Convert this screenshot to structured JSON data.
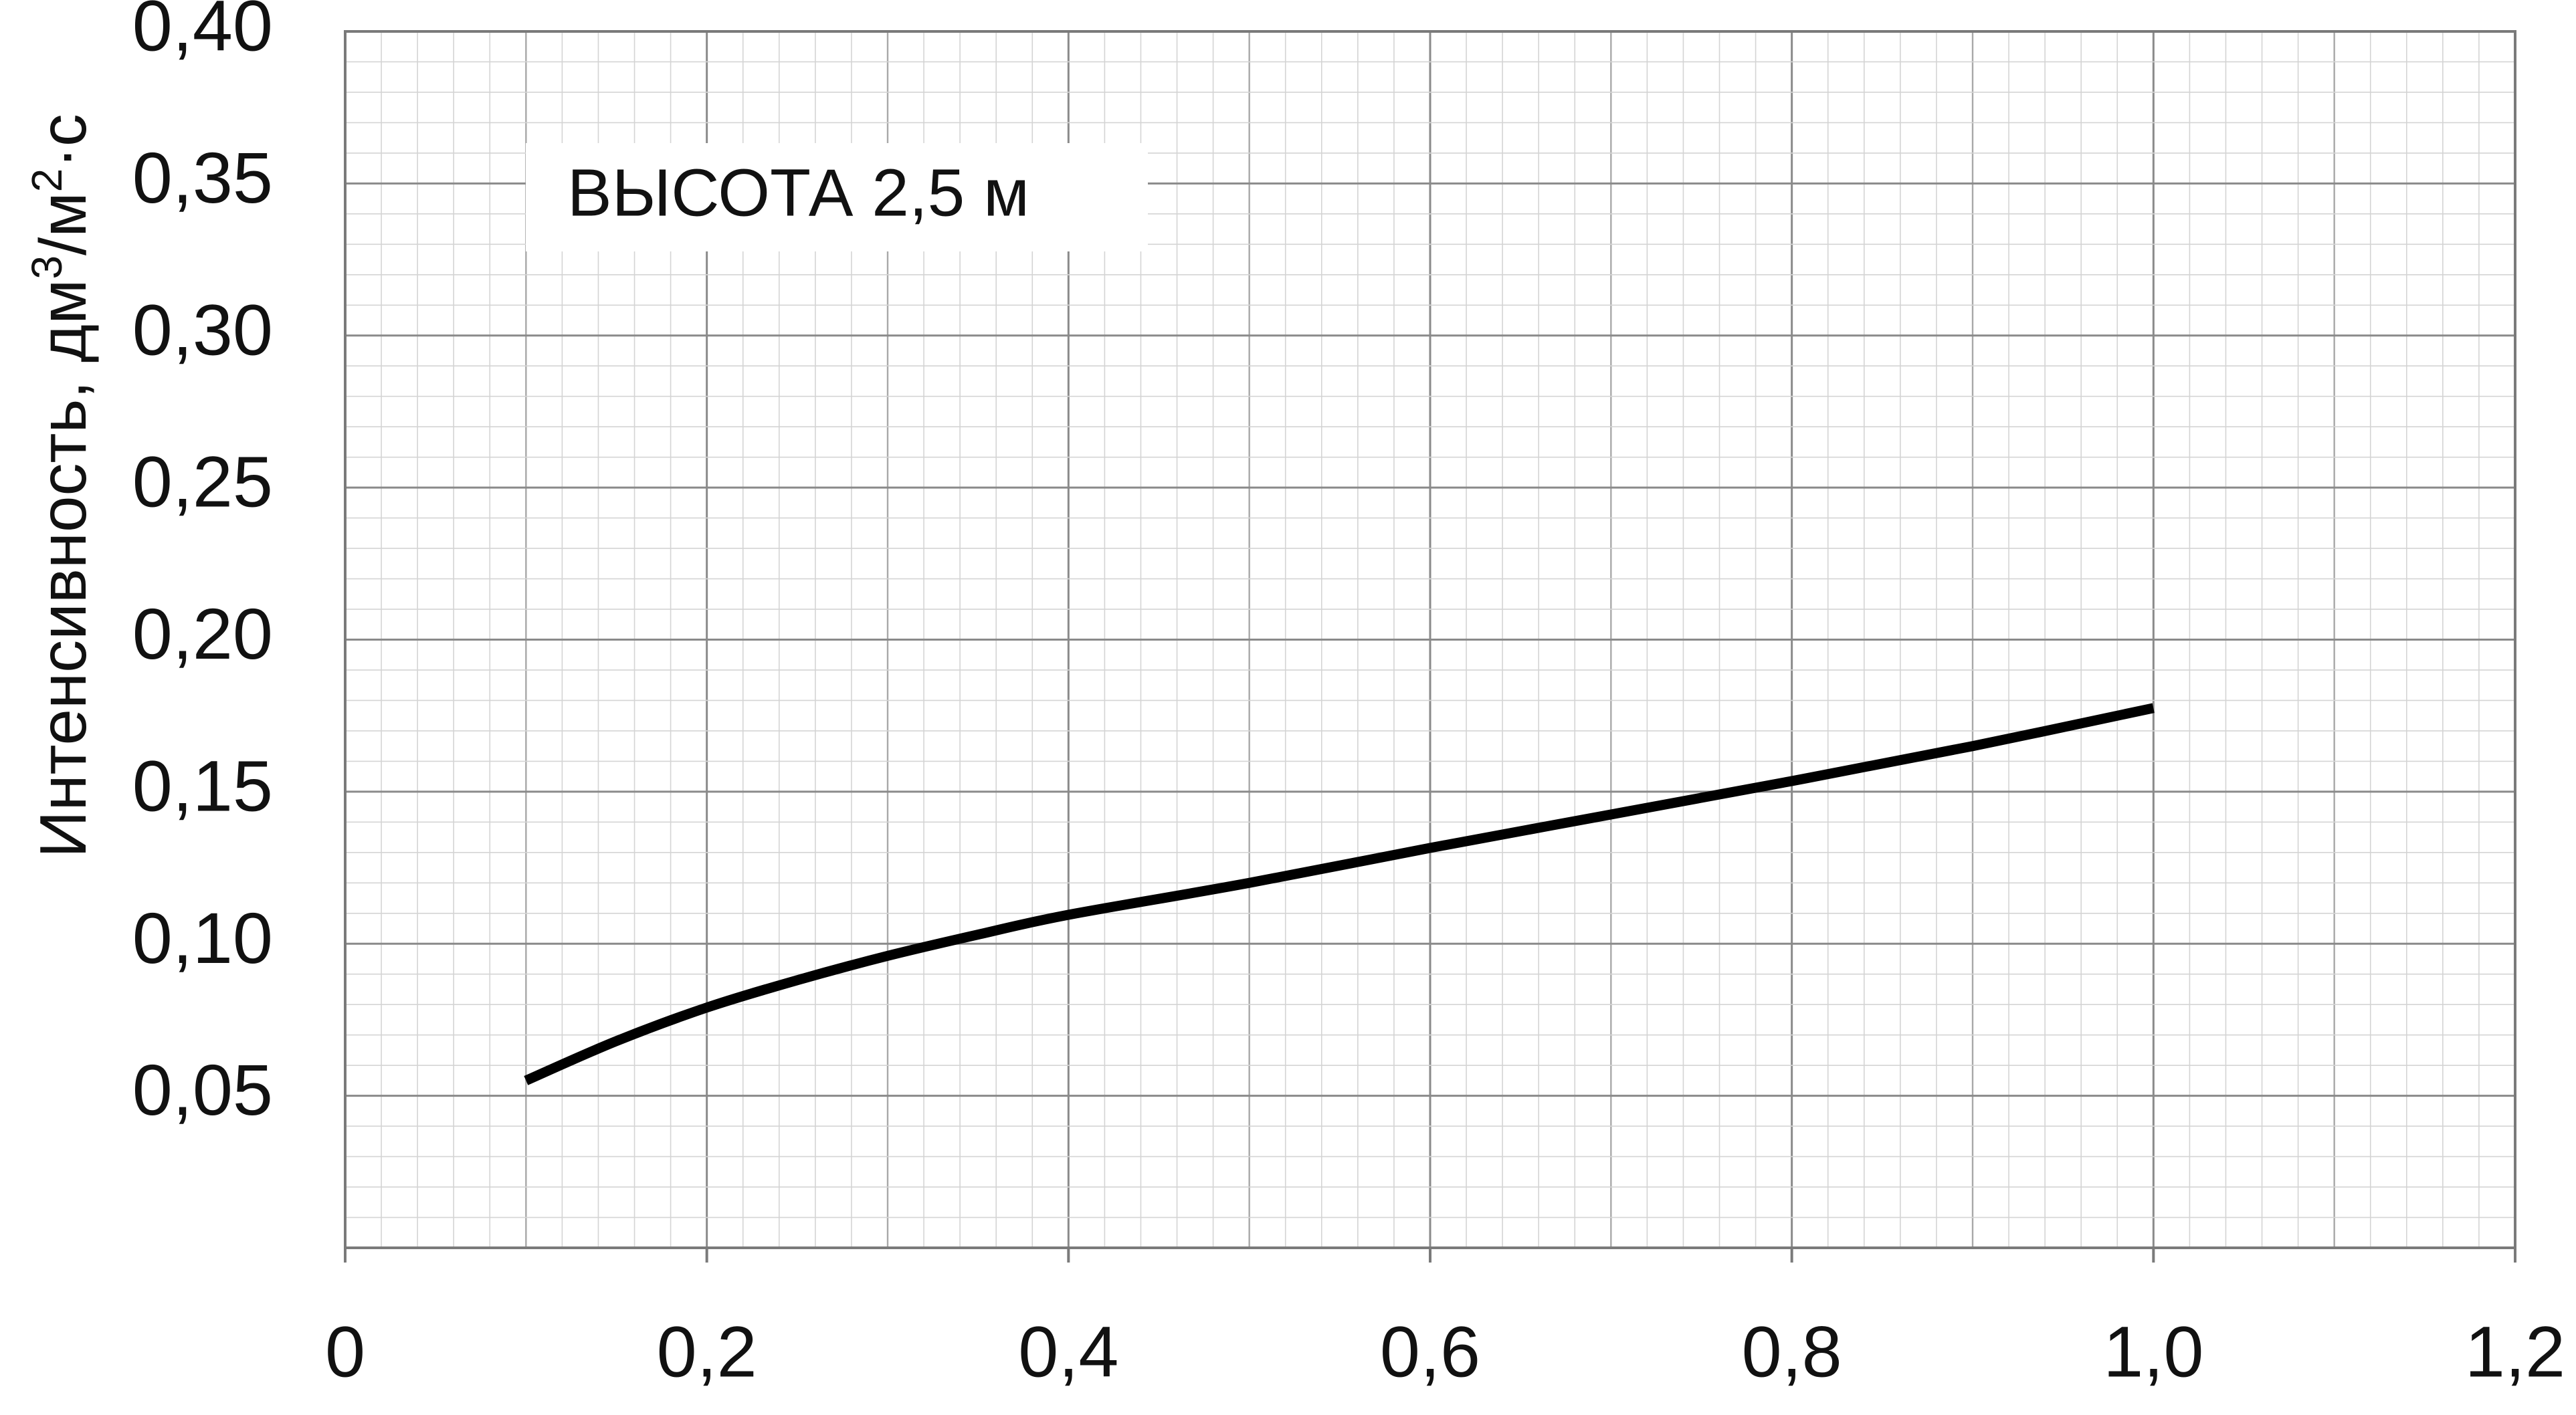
{
  "chart_data": {
    "type": "line",
    "title": "",
    "xlabel": "",
    "ylabel": {
      "main": "Интенсивность, дм",
      "sup1": "3",
      "mid": "/м",
      "sup2": "2",
      "end": "·с"
    },
    "xlim": [
      0,
      1.2
    ],
    "ylim": [
      0,
      0.4
    ],
    "x_ticks": [
      {
        "value": 0,
        "label": "0"
      },
      {
        "value": 0.2,
        "label": "0,2"
      },
      {
        "value": 0.4,
        "label": "0,4"
      },
      {
        "value": 0.6,
        "label": "0,6"
      },
      {
        "value": 0.8,
        "label": "0,8"
      },
      {
        "value": 1.0,
        "label": "1,0"
      },
      {
        "value": 1.2,
        "label": "1,2"
      }
    ],
    "y_ticks": [
      {
        "value": 0.05,
        "label": "0,05"
      },
      {
        "value": 0.1,
        "label": "0,10"
      },
      {
        "value": 0.15,
        "label": "0,15"
      },
      {
        "value": 0.2,
        "label": "0,20"
      },
      {
        "value": 0.25,
        "label": "0,25"
      },
      {
        "value": 0.3,
        "label": "0,30"
      },
      {
        "value": 0.35,
        "label": "0,35"
      },
      {
        "value": 0.4,
        "label": "0,40"
      }
    ],
    "grid": true,
    "legend": "none",
    "annotation": "ВЫСОТА 2,5 м",
    "series": [
      {
        "color": "#000000",
        "x": [
          0.1,
          0.15,
          0.2,
          0.25,
          0.3,
          0.35,
          0.4,
          0.5,
          0.6,
          0.7,
          0.8,
          0.9,
          1.0
        ],
        "y": [
          0.055,
          0.068,
          0.079,
          0.088,
          0.096,
          0.103,
          0.1095,
          0.12,
          0.1315,
          0.1425,
          0.1535,
          0.165,
          0.1775
        ]
      }
    ]
  }
}
